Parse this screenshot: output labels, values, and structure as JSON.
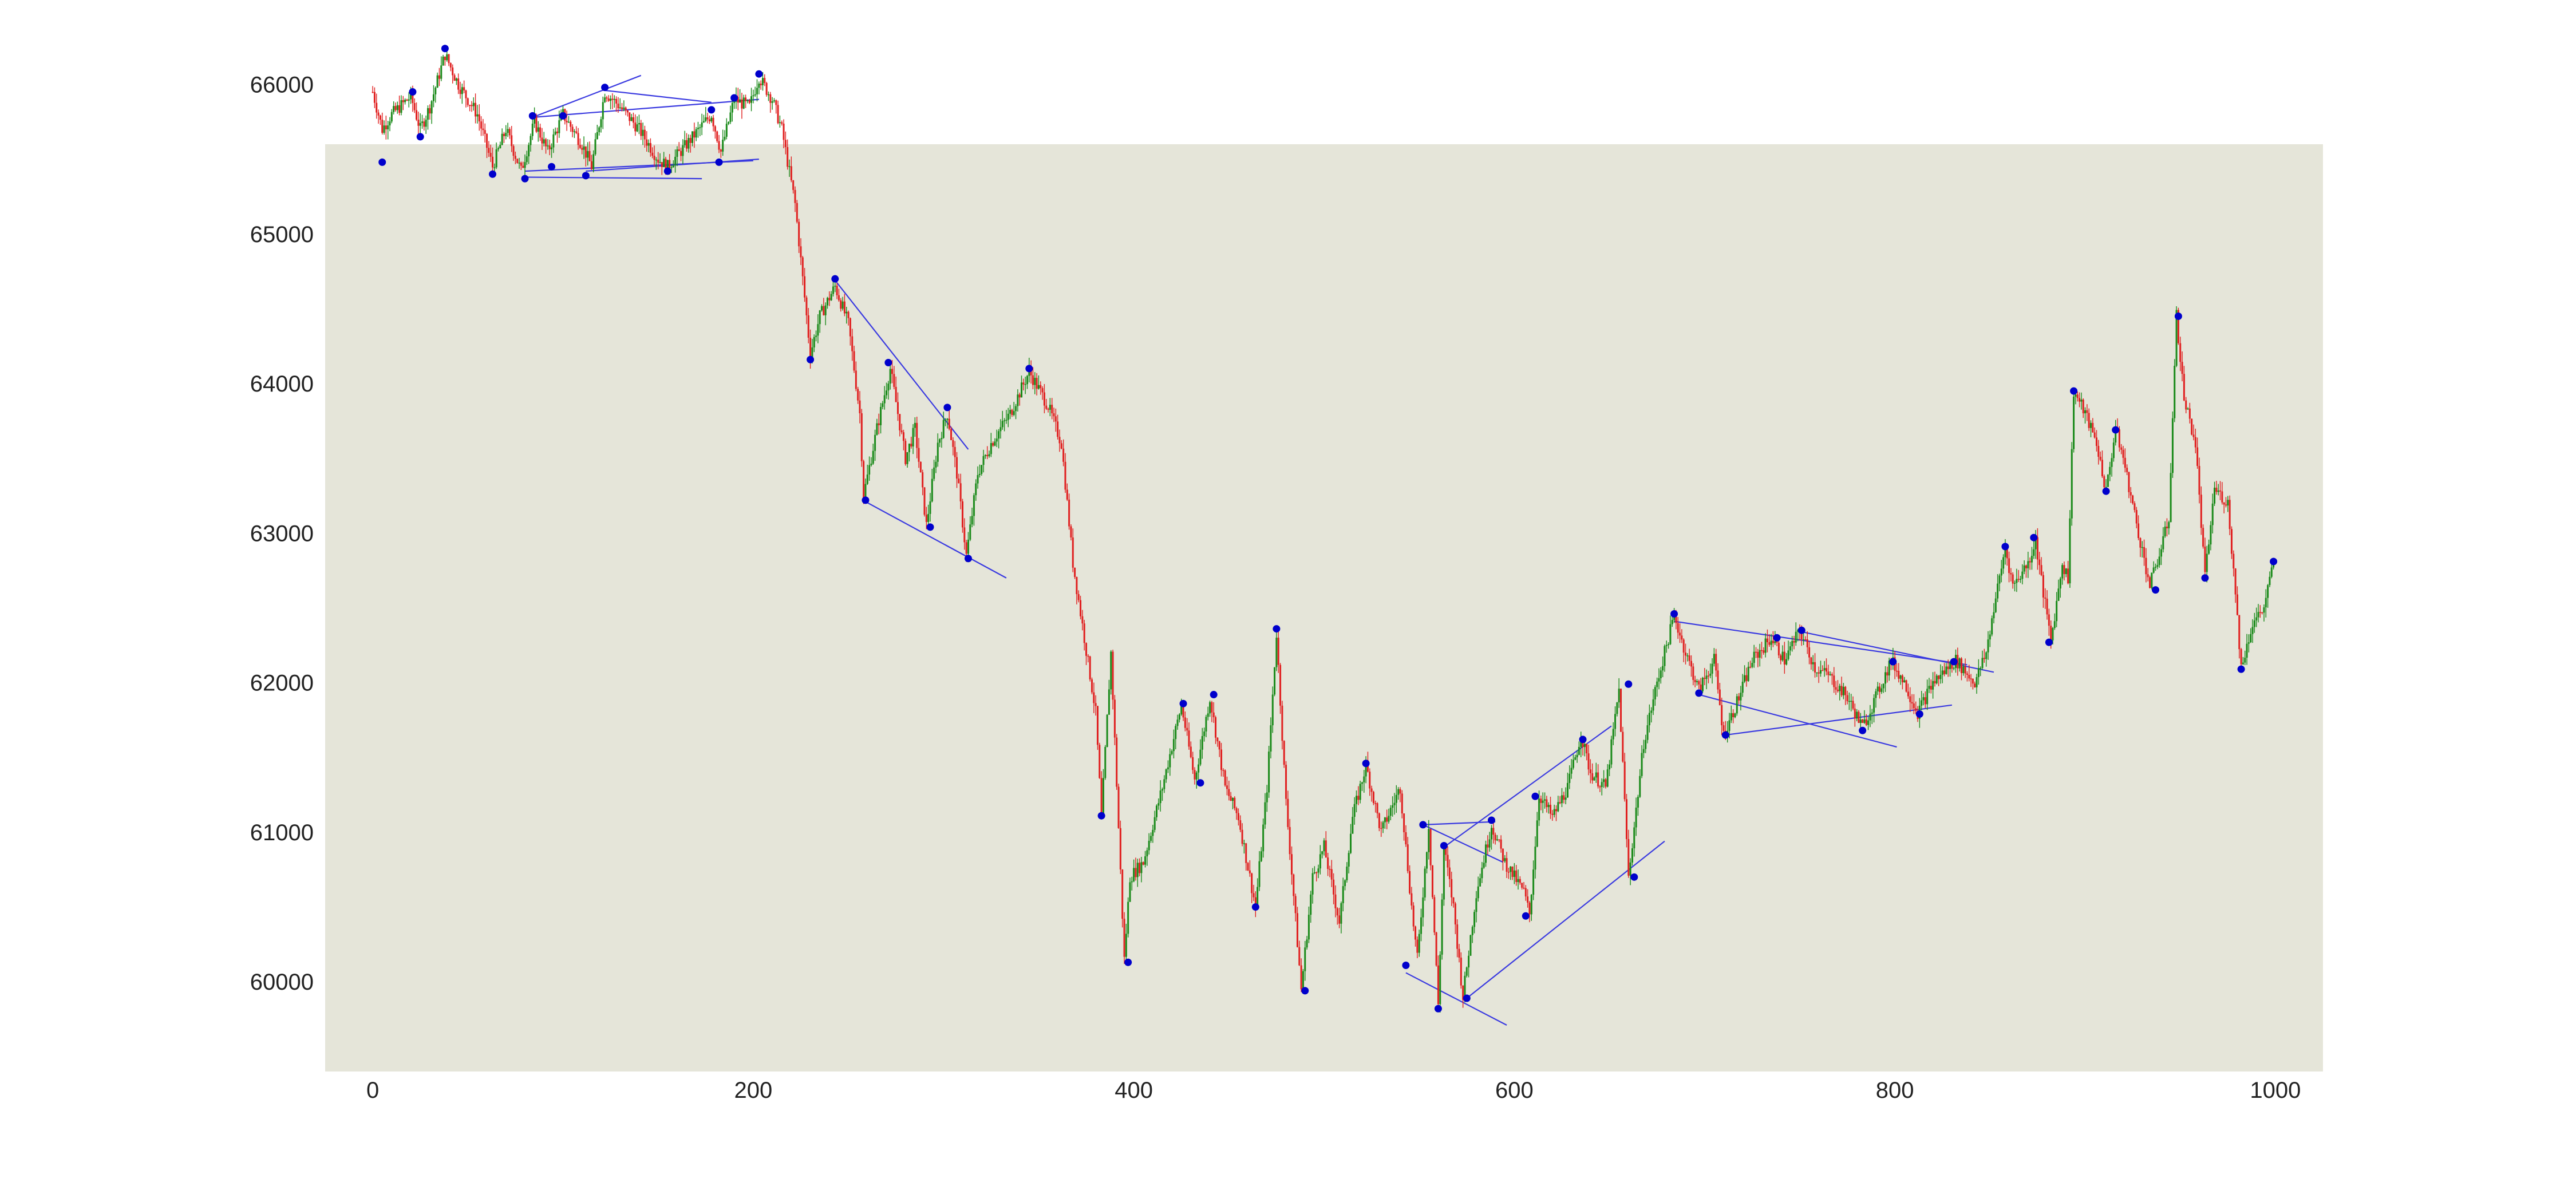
{
  "chart_data": {
    "type": "line",
    "title": "",
    "xlabel": "",
    "ylabel": "",
    "xlim": [
      -25,
      1025
    ],
    "ylim": [
      59400,
      65600
    ],
    "x_ticks": [
      0,
      200,
      400,
      600,
      800,
      1000
    ],
    "x_tick_labels": [
      "0",
      "200",
      "400",
      "600",
      "800",
      "1000"
    ],
    "y_ticks": [
      60000,
      61000,
      62000,
      63000,
      64000,
      65000,
      66000
    ],
    "y_tick_labels": [
      "60000",
      "61000",
      "62000",
      "63000",
      "64000",
      "65000",
      "66000"
    ],
    "grid": false,
    "colors": {
      "plot_background": "#e5e5d9",
      "up": "#1a8a1a",
      "down": "#e02020",
      "pivot_marker": "#0000cc",
      "trendline": "#3a3ae0"
    },
    "price_path": [
      [
        0,
        65950
      ],
      [
        5,
        65700
      ],
      [
        10,
        65800
      ],
      [
        20,
        65920
      ],
      [
        25,
        65700
      ],
      [
        30,
        65850
      ],
      [
        38,
        66200
      ],
      [
        45,
        66000
      ],
      [
        55,
        65800
      ],
      [
        63,
        65450
      ],
      [
        70,
        65700
      ],
      [
        78,
        65420
      ],
      [
        85,
        65750
      ],
      [
        92,
        65550
      ],
      [
        100,
        65800
      ],
      [
        110,
        65600
      ],
      [
        115,
        65450
      ],
      [
        122,
        65950
      ],
      [
        130,
        65850
      ],
      [
        140,
        65700
      ],
      [
        150,
        65500
      ],
      [
        155,
        65450
      ],
      [
        165,
        65600
      ],
      [
        178,
        65800
      ],
      [
        183,
        65550
      ],
      [
        190,
        65900
      ],
      [
        198,
        65850
      ],
      [
        203,
        66050
      ],
      [
        210,
        65900
      ],
      [
        215,
        65700
      ],
      [
        222,
        65200
      ],
      [
        226,
        64700
      ],
      [
        230,
        64200
      ],
      [
        235,
        64450
      ],
      [
        243,
        64650
      ],
      [
        250,
        64400
      ],
      [
        256,
        63800
      ],
      [
        258,
        63250
      ],
      [
        265,
        63700
      ],
      [
        272,
        64100
      ],
      [
        280,
        63500
      ],
      [
        285,
        63700
      ],
      [
        291,
        63050
      ],
      [
        297,
        63600
      ],
      [
        302,
        63800
      ],
      [
        307,
        63400
      ],
      [
        312,
        62850
      ],
      [
        318,
        63400
      ],
      [
        325,
        63600
      ],
      [
        335,
        63800
      ],
      [
        345,
        64080
      ],
      [
        355,
        63850
      ],
      [
        362,
        63600
      ],
      [
        368,
        62800
      ],
      [
        374,
        62300
      ],
      [
        380,
        61800
      ],
      [
        383,
        61100
      ],
      [
        388,
        62200
      ],
      [
        395,
        60150
      ],
      [
        398,
        60700
      ],
      [
        405,
        60800
      ],
      [
        415,
        61300
      ],
      [
        425,
        61850
      ],
      [
        432,
        61350
      ],
      [
        440,
        61900
      ],
      [
        448,
        61300
      ],
      [
        455,
        61100
      ],
      [
        464,
        60500
      ],
      [
        470,
        61300
      ],
      [
        475,
        62330
      ],
      [
        480,
        61200
      ],
      [
        488,
        59950
      ],
      [
        494,
        60700
      ],
      [
        500,
        60900
      ],
      [
        508,
        60400
      ],
      [
        515,
        61100
      ],
      [
        522,
        61450
      ],
      [
        530,
        61000
      ],
      [
        540,
        61300
      ],
      [
        546,
        60500
      ],
      [
        549,
        60150
      ],
      [
        555,
        61050
      ],
      [
        560,
        59850
      ],
      [
        563,
        60900
      ],
      [
        568,
        60500
      ],
      [
        573,
        59900
      ],
      [
        580,
        60600
      ],
      [
        588,
        61050
      ],
      [
        595,
        60800
      ],
      [
        605,
        60600
      ],
      [
        608,
        60450
      ],
      [
        613,
        61250
      ],
      [
        620,
        61100
      ],
      [
        628,
        61300
      ],
      [
        635,
        61650
      ],
      [
        640,
        61400
      ],
      [
        648,
        61300
      ],
      [
        655,
        61950
      ],
      [
        660,
        60700
      ],
      [
        668,
        61600
      ],
      [
        675,
        62000
      ],
      [
        684,
        62450
      ],
      [
        690,
        62200
      ],
      [
        697,
        61950
      ],
      [
        705,
        62150
      ],
      [
        710,
        61650
      ],
      [
        718,
        61900
      ],
      [
        725,
        62150
      ],
      [
        735,
        62300
      ],
      [
        742,
        62150
      ],
      [
        750,
        62350
      ],
      [
        758,
        62100
      ],
      [
        765,
        62050
      ],
      [
        775,
        61900
      ],
      [
        783,
        61700
      ],
      [
        790,
        61900
      ],
      [
        798,
        62150
      ],
      [
        805,
        62000
      ],
      [
        812,
        61800
      ],
      [
        820,
        62000
      ],
      [
        832,
        62150
      ],
      [
        842,
        62000
      ],
      [
        848,
        62200
      ],
      [
        852,
        62500
      ],
      [
        858,
        62900
      ],
      [
        862,
        62650
      ],
      [
        870,
        62800
      ],
      [
        874,
        62950
      ],
      [
        878,
        62600
      ],
      [
        882,
        62280
      ],
      [
        888,
        62800
      ],
      [
        891,
        62700
      ],
      [
        894,
        63950
      ],
      [
        900,
        63800
      ],
      [
        906,
        63600
      ],
      [
        911,
        63280
      ],
      [
        916,
        63700
      ],
      [
        920,
        63500
      ],
      [
        928,
        63000
      ],
      [
        934,
        62650
      ],
      [
        940,
        62900
      ],
      [
        944,
        63100
      ],
      [
        948,
        64450
      ],
      [
        952,
        63900
      ],
      [
        958,
        63600
      ],
      [
        963,
        62700
      ],
      [
        968,
        63300
      ],
      [
        975,
        63200
      ],
      [
        979,
        62600
      ],
      [
        982,
        62100
      ],
      [
        988,
        62400
      ],
      [
        994,
        62500
      ],
      [
        999,
        62800
      ]
    ],
    "pivots": [
      [
        5,
        65480
      ],
      [
        21,
        65950
      ],
      [
        25,
        65650
      ],
      [
        38,
        66240
      ],
      [
        63,
        65400
      ],
      [
        80,
        65370
      ],
      [
        84,
        65790
      ],
      [
        94,
        65450
      ],
      [
        100,
        65790
      ],
      [
        112,
        65390
      ],
      [
        122,
        65980
      ],
      [
        155,
        65420
      ],
      [
        178,
        65830
      ],
      [
        182,
        65480
      ],
      [
        190,
        65910
      ],
      [
        203,
        66070
      ],
      [
        230,
        64160
      ],
      [
        243,
        64700
      ],
      [
        259,
        63220
      ],
      [
        271,
        64140
      ],
      [
        293,
        63040
      ],
      [
        302,
        63840
      ],
      [
        313,
        62830
      ],
      [
        345,
        64100
      ],
      [
        383,
        61110
      ],
      [
        397,
        60130
      ],
      [
        426,
        61860
      ],
      [
        435,
        61330
      ],
      [
        442,
        61920
      ],
      [
        464,
        60500
      ],
      [
        475,
        62360
      ],
      [
        490,
        59940
      ],
      [
        522,
        61460
      ],
      [
        543,
        60110
      ],
      [
        552,
        61050
      ],
      [
        560,
        59820
      ],
      [
        563,
        60910
      ],
      [
        575,
        59890
      ],
      [
        588,
        61080
      ],
      [
        606,
        60440
      ],
      [
        611,
        61240
      ],
      [
        636,
        61620
      ],
      [
        660,
        61990
      ],
      [
        663,
        60700
      ],
      [
        684,
        62460
      ],
      [
        697,
        61930
      ],
      [
        711,
        61650
      ],
      [
        738,
        62300
      ],
      [
        751,
        62350
      ],
      [
        783,
        61680
      ],
      [
        799,
        62140
      ],
      [
        813,
        61790
      ],
      [
        831,
        62140
      ],
      [
        858,
        62910
      ],
      [
        873,
        62970
      ],
      [
        881,
        62270
      ],
      [
        894,
        63950
      ],
      [
        911,
        63280
      ],
      [
        916,
        63690
      ],
      [
        937,
        62620
      ],
      [
        949,
        64450
      ],
      [
        963,
        62700
      ],
      [
        982,
        62090
      ],
      [
        999,
        62810
      ]
    ],
    "trendlines": [
      [
        [
          84,
          65780
        ],
        [
          203,
          65900
        ]
      ],
      [
        [
          84,
          65780
        ],
        [
          141,
          66060
        ]
      ],
      [
        [
          80,
          65420
        ],
        [
          200,
          65490
        ]
      ],
      [
        [
          80,
          65380
        ],
        [
          173,
          65370
        ]
      ],
      [
        [
          112,
          65420
        ],
        [
          203,
          65500
        ]
      ],
      [
        [
          122,
          65960
        ],
        [
          178,
          65880
        ]
      ],
      [
        [
          243,
          64690
        ],
        [
          313,
          63560
        ]
      ],
      [
        [
          259,
          63210
        ],
        [
          333,
          62700
        ]
      ],
      [
        [
          552,
          61050
        ],
        [
          590,
          61070
        ]
      ],
      [
        [
          563,
          60900
        ],
        [
          651,
          61710
        ]
      ],
      [
        [
          543,
          60060
        ],
        [
          596,
          59710
        ]
      ],
      [
        [
          575,
          59890
        ],
        [
          679,
          60940
        ]
      ],
      [
        [
          552,
          61050
        ],
        [
          594,
          60800
        ]
      ],
      [
        [
          684,
          62410
        ],
        [
          838,
          62120
        ]
      ],
      [
        [
          697,
          61920
        ],
        [
          801,
          61570
        ]
      ],
      [
        [
          711,
          61650
        ],
        [
          830,
          61850
        ]
      ],
      [
        [
          751,
          62340
        ],
        [
          852,
          62070
        ]
      ]
    ]
  }
}
